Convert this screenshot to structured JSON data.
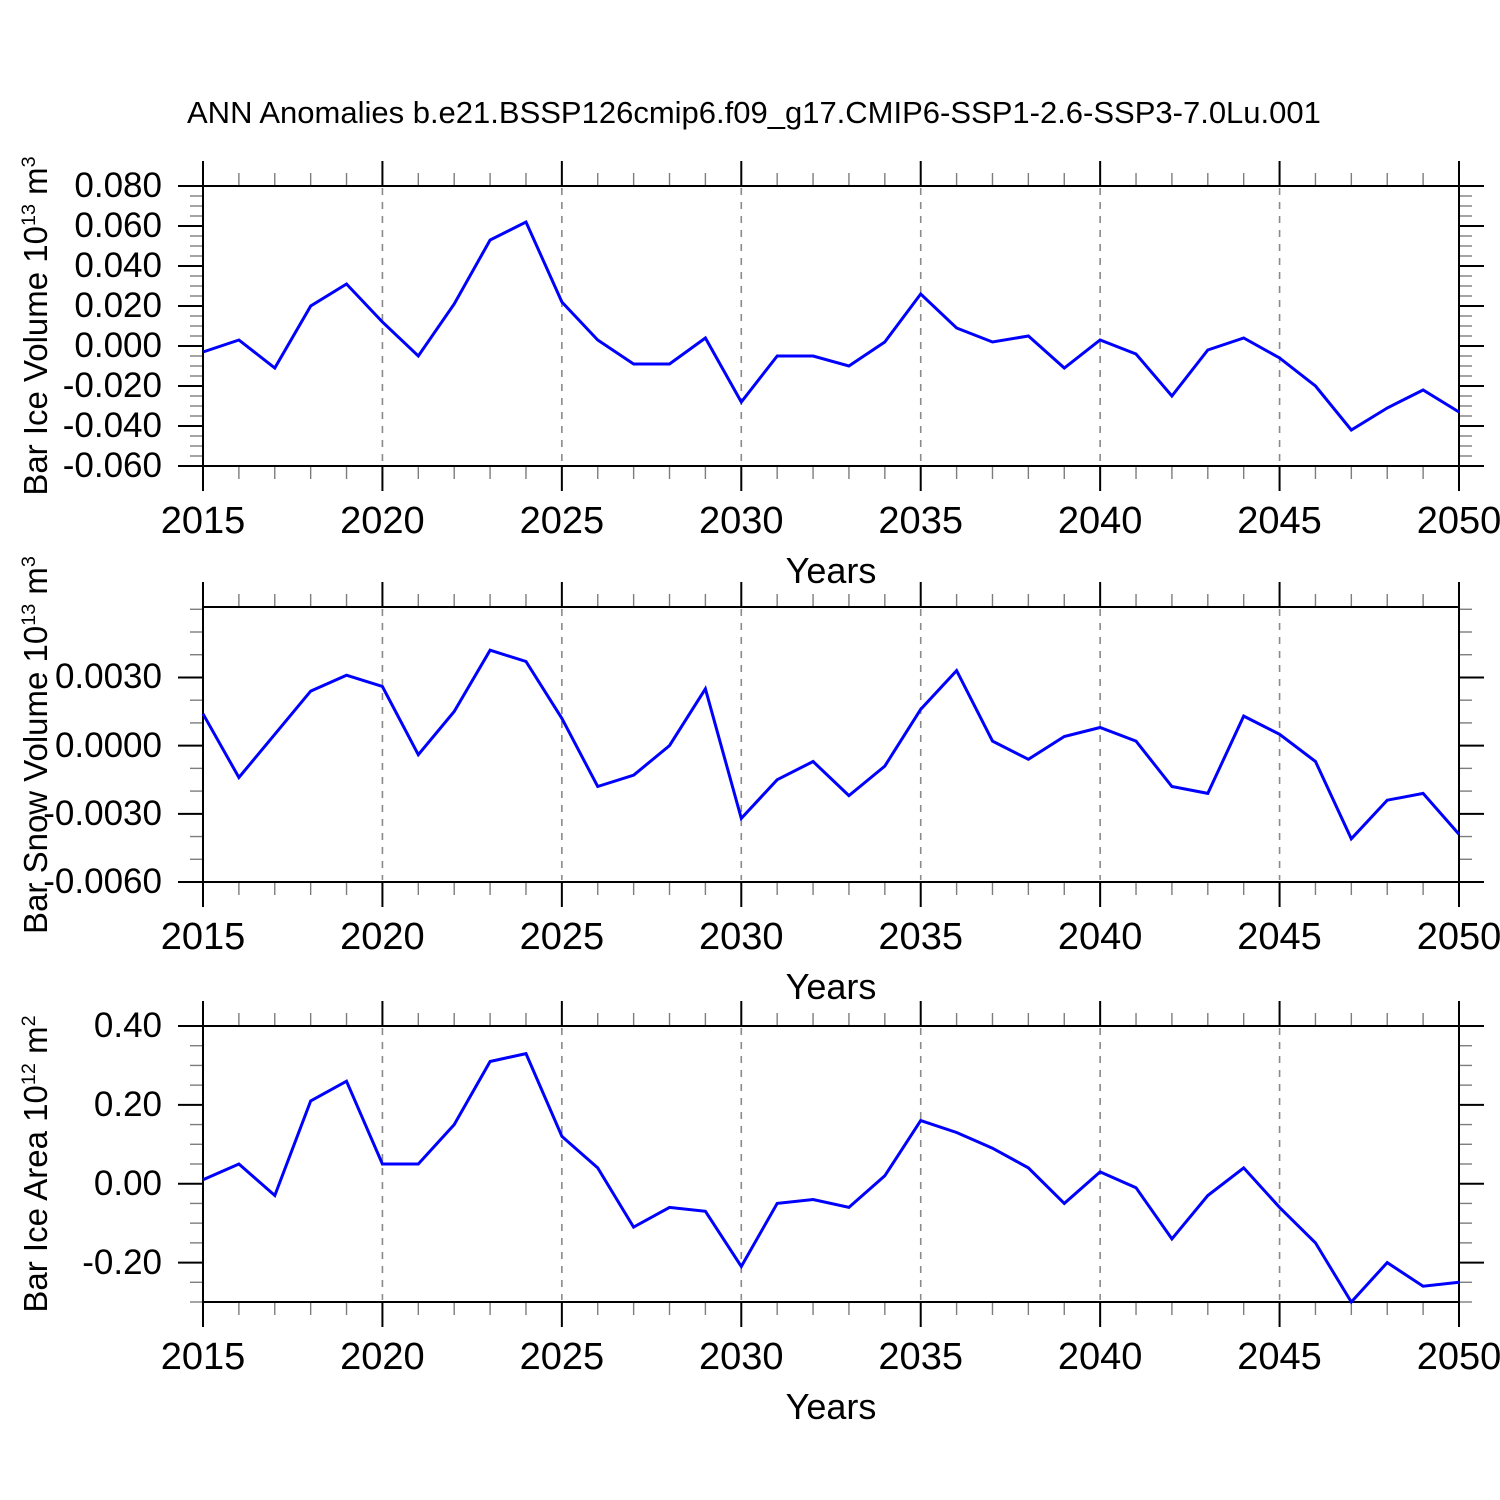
{
  "title": "ANN Anomalies b.e21.BSSP126cmip6.f09_g17.CMIP6-SSP1-2.6-SSP3-7.0Lu.001",
  "style": {
    "line_color": "#0000ff",
    "axis_color": "#000000",
    "grid_color": "#8a8a8a",
    "minor_tick_color": "#7d7d7d",
    "background": "#ffffff"
  },
  "chart_data": [
    {
      "type": "line",
      "xlabel": "Years",
      "ylabel_parts": [
        {
          "t": "Bar Ice Volume 10"
        },
        {
          "t": "13",
          "sup": true
        },
        {
          "t": " m"
        },
        {
          "t": "3",
          "sup": true
        }
      ],
      "x": [
        2015,
        2016,
        2017,
        2018,
        2019,
        2020,
        2021,
        2022,
        2023,
        2024,
        2025,
        2026,
        2027,
        2028,
        2029,
        2030,
        2031,
        2032,
        2033,
        2034,
        2035,
        2036,
        2037,
        2038,
        2039,
        2040,
        2041,
        2042,
        2043,
        2044,
        2045,
        2046,
        2047,
        2048,
        2049,
        2050
      ],
      "values": [
        -0.003,
        0.003,
        -0.011,
        0.02,
        0.031,
        0.012,
        -0.005,
        0.021,
        0.053,
        0.062,
        0.022,
        0.003,
        -0.009,
        -0.009,
        0.004,
        -0.028,
        -0.005,
        -0.005,
        -0.01,
        0.002,
        0.026,
        0.009,
        0.002,
        0.005,
        -0.011,
        0.003,
        -0.004,
        -0.025,
        -0.002,
        0.004,
        -0.006,
        -0.02,
        -0.042,
        -0.031,
        -0.022,
        -0.033
      ],
      "ylim": [
        -0.06,
        0.08
      ],
      "yticks": {
        "values": [
          0.08,
          0.06,
          0.04,
          0.02,
          0.0,
          -0.02,
          -0.04,
          -0.06
        ],
        "labels": [
          "0.080",
          "0.060",
          "0.040",
          "0.020",
          "0.000",
          "-0.020",
          "-0.040",
          "-0.060"
        ],
        "minor_step": 0.005
      },
      "xticks": {
        "values": [
          2015,
          2020,
          2025,
          2030,
          2035,
          2040,
          2045,
          2050
        ],
        "labels": [
          "2015",
          "2020",
          "2025",
          "2030",
          "2035",
          "2040",
          "2045",
          "2050"
        ],
        "minor_step": 1
      },
      "gridlines_x": [
        2020,
        2025,
        2030,
        2035,
        2040,
        2045
      ],
      "grid": "vertical-dashed",
      "legend": "none"
    },
    {
      "type": "line",
      "xlabel": "Years",
      "ylabel_parts": [
        {
          "t": "Bar Snow Volume 10"
        },
        {
          "t": "13",
          "sup": true
        },
        {
          "t": " m"
        },
        {
          "t": "3",
          "sup": true
        }
      ],
      "x": [
        2015,
        2016,
        2017,
        2018,
        2019,
        2020,
        2021,
        2022,
        2023,
        2024,
        2025,
        2026,
        2027,
        2028,
        2029,
        2030,
        2031,
        2032,
        2033,
        2034,
        2035,
        2036,
        2037,
        2038,
        2039,
        2040,
        2041,
        2042,
        2043,
        2044,
        2045,
        2046,
        2047,
        2048,
        2049,
        2050
      ],
      "values": [
        0.0014,
        -0.0014,
        0.0005,
        0.0024,
        0.0031,
        0.0026,
        -0.0004,
        0.0015,
        0.0042,
        0.0037,
        0.0012,
        -0.0018,
        -0.0013,
        0.0,
        0.0025,
        -0.0032,
        -0.0015,
        -0.0007,
        -0.0022,
        -0.0009,
        0.0016,
        0.0033,
        0.0002,
        -0.0006,
        0.0004,
        0.0008,
        0.0002,
        -0.0018,
        -0.0021,
        0.0013,
        0.0005,
        -0.0007,
        -0.0041,
        -0.0024,
        -0.0021,
        -0.0039
      ],
      "ylim": [
        -0.006,
        0.0061
      ],
      "yticks": {
        "values": [
          0.003,
          0.0,
          -0.003,
          -0.006
        ],
        "labels": [
          "0.0030",
          "0.0000",
          "-0.0030",
          "-0.0060"
        ],
        "minor_step": 0.001
      },
      "xticks": {
        "values": [
          2015,
          2020,
          2025,
          2030,
          2035,
          2040,
          2045,
          2050
        ],
        "labels": [
          "2015",
          "2020",
          "2025",
          "2030",
          "2035",
          "2040",
          "2045",
          "2050"
        ],
        "minor_step": 1
      },
      "gridlines_x": [
        2020,
        2025,
        2030,
        2035,
        2040,
        2045
      ],
      "grid": "vertical-dashed",
      "legend": "none"
    },
    {
      "type": "line",
      "xlabel": "Years",
      "ylabel_parts": [
        {
          "t": "Bar Ice Area 10"
        },
        {
          "t": "12",
          "sup": true
        },
        {
          "t": " m"
        },
        {
          "t": "2",
          "sup": true
        }
      ],
      "x": [
        2015,
        2016,
        2017,
        2018,
        2019,
        2020,
        2021,
        2022,
        2023,
        2024,
        2025,
        2026,
        2027,
        2028,
        2029,
        2030,
        2031,
        2032,
        2033,
        2034,
        2035,
        2036,
        2037,
        2038,
        2039,
        2040,
        2041,
        2042,
        2043,
        2044,
        2045,
        2046,
        2047,
        2048,
        2049,
        2050
      ],
      "values": [
        0.01,
        0.05,
        -0.03,
        0.21,
        0.26,
        0.05,
        0.05,
        0.15,
        0.31,
        0.33,
        0.12,
        0.04,
        -0.11,
        -0.06,
        -0.07,
        -0.21,
        -0.05,
        -0.04,
        -0.06,
        0.02,
        0.16,
        0.13,
        0.09,
        0.04,
        -0.05,
        0.03,
        -0.01,
        -0.14,
        -0.03,
        0.04,
        -0.06,
        -0.15,
        -0.3,
        -0.2,
        -0.26,
        -0.25
      ],
      "ylim": [
        -0.3,
        0.4
      ],
      "yticks": {
        "values": [
          0.4,
          0.2,
          0.0,
          -0.2
        ],
        "labels": [
          "0.40",
          "0.20",
          "0.00",
          "-0.20"
        ],
        "minor_step": 0.05
      },
      "xticks": {
        "values": [
          2015,
          2020,
          2025,
          2030,
          2035,
          2040,
          2045,
          2050
        ],
        "labels": [
          "2015",
          "2020",
          "2025",
          "2030",
          "2035",
          "2040",
          "2045",
          "2050"
        ],
        "minor_step": 1
      },
      "gridlines_x": [
        2020,
        2025,
        2030,
        2035,
        2040,
        2045
      ],
      "grid": "vertical-dashed",
      "legend": "none"
    }
  ]
}
